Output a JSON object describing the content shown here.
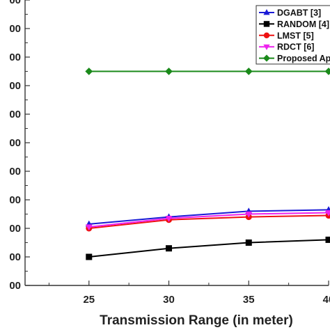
{
  "chart_data": {
    "type": "line",
    "xlabel": "Transmission Range (in meter)",
    "ylabel": "",
    "x": [
      25,
      30,
      35,
      40
    ],
    "xlim": [
      21,
      40
    ],
    "ylim": [
      0,
      200
    ],
    "xticks": [
      "25",
      "30",
      "35",
      "40"
    ],
    "yticks": [
      {
        "value": 0,
        "label": "00"
      },
      {
        "value": 20,
        "label": "00"
      },
      {
        "value": 40,
        "label": "00"
      },
      {
        "value": 60,
        "label": "00"
      },
      {
        "value": 80,
        "label": "00"
      },
      {
        "value": 100,
        "label": "00"
      },
      {
        "value": 120,
        "label": "00"
      },
      {
        "value": 140,
        "label": "00"
      },
      {
        "value": 160,
        "label": "00"
      },
      {
        "value": 180,
        "label": "00"
      },
      {
        "value": 200,
        "label": "00"
      }
    ],
    "grid": false,
    "legend_position": "top-right",
    "series": [
      {
        "name": "DGABT [3]",
        "color": "#1a1ad6",
        "marker": "triangle-up",
        "values": [
          43,
          48,
          52,
          53
        ]
      },
      {
        "name": "RANDOM [4]",
        "color": "#000000",
        "marker": "square",
        "values": [
          20,
          26,
          30,
          32
        ]
      },
      {
        "name": "LMST [5]",
        "color": "#ee1111",
        "marker": "circle",
        "values": [
          40,
          46,
          48,
          49
        ]
      },
      {
        "name": "RDCT [6]",
        "color": "#ee22ee",
        "marker": "triangle-down",
        "values": [
          41,
          47,
          50,
          51
        ]
      },
      {
        "name": "Proposed Ap",
        "color": "#1a8a1a",
        "marker": "diamond",
        "values": [
          150,
          150,
          150,
          150
        ]
      }
    ]
  }
}
